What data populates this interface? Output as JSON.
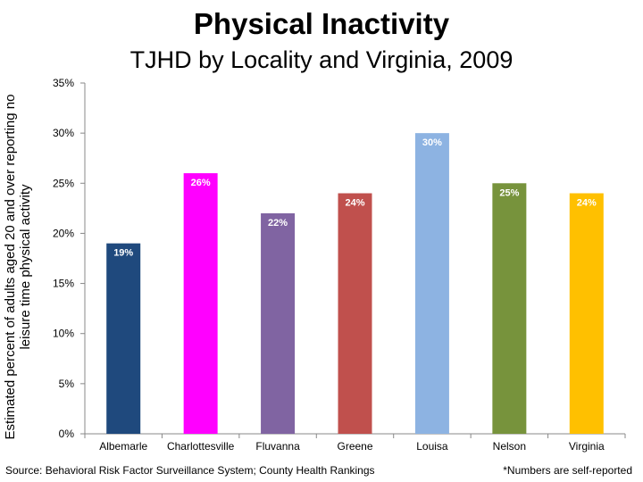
{
  "page": {
    "title": "Physical Inactivity",
    "subtitle": "TJHD by Locality and Virginia, 2009",
    "source": "Source: Behavioral Risk Factor Surveillance System; County Health Rankings",
    "note": "*Numbers are self-reported"
  },
  "chart_data": {
    "type": "bar",
    "title": "Physical Inactivity",
    "subtitle": "TJHD by Locality and Virginia, 2009",
    "xlabel": "",
    "ylabel": "Estimated percent of adults aged 20 and over reporting no leisure time physical activity",
    "ylim": [
      0,
      35
    ],
    "yticks": [
      0,
      5,
      10,
      15,
      20,
      25,
      30,
      35
    ],
    "ytick_labels": [
      "0%",
      "5%",
      "10%",
      "15%",
      "20%",
      "25%",
      "30%",
      "35%"
    ],
    "grid": false,
    "categories": [
      "Albemarle",
      "Charlottesville",
      "Fluvanna",
      "Greene",
      "Louisa",
      "Nelson",
      "Virginia"
    ],
    "values": [
      19,
      26,
      22,
      24,
      30,
      25,
      24
    ],
    "data_labels": [
      "19%",
      "26%",
      "22%",
      "24%",
      "30%",
      "25%",
      "24%"
    ],
    "colors": [
      "#1f497d",
      "#ff00ff",
      "#8064a2",
      "#c0504d",
      "#8db3e2",
      "#77933c",
      "#ffc000"
    ],
    "label_colors": [
      "#ffffff",
      "#ffffff",
      "#ffffff",
      "#ffffff",
      "#ffffff",
      "#ffffff",
      "#ffffff"
    ]
  }
}
